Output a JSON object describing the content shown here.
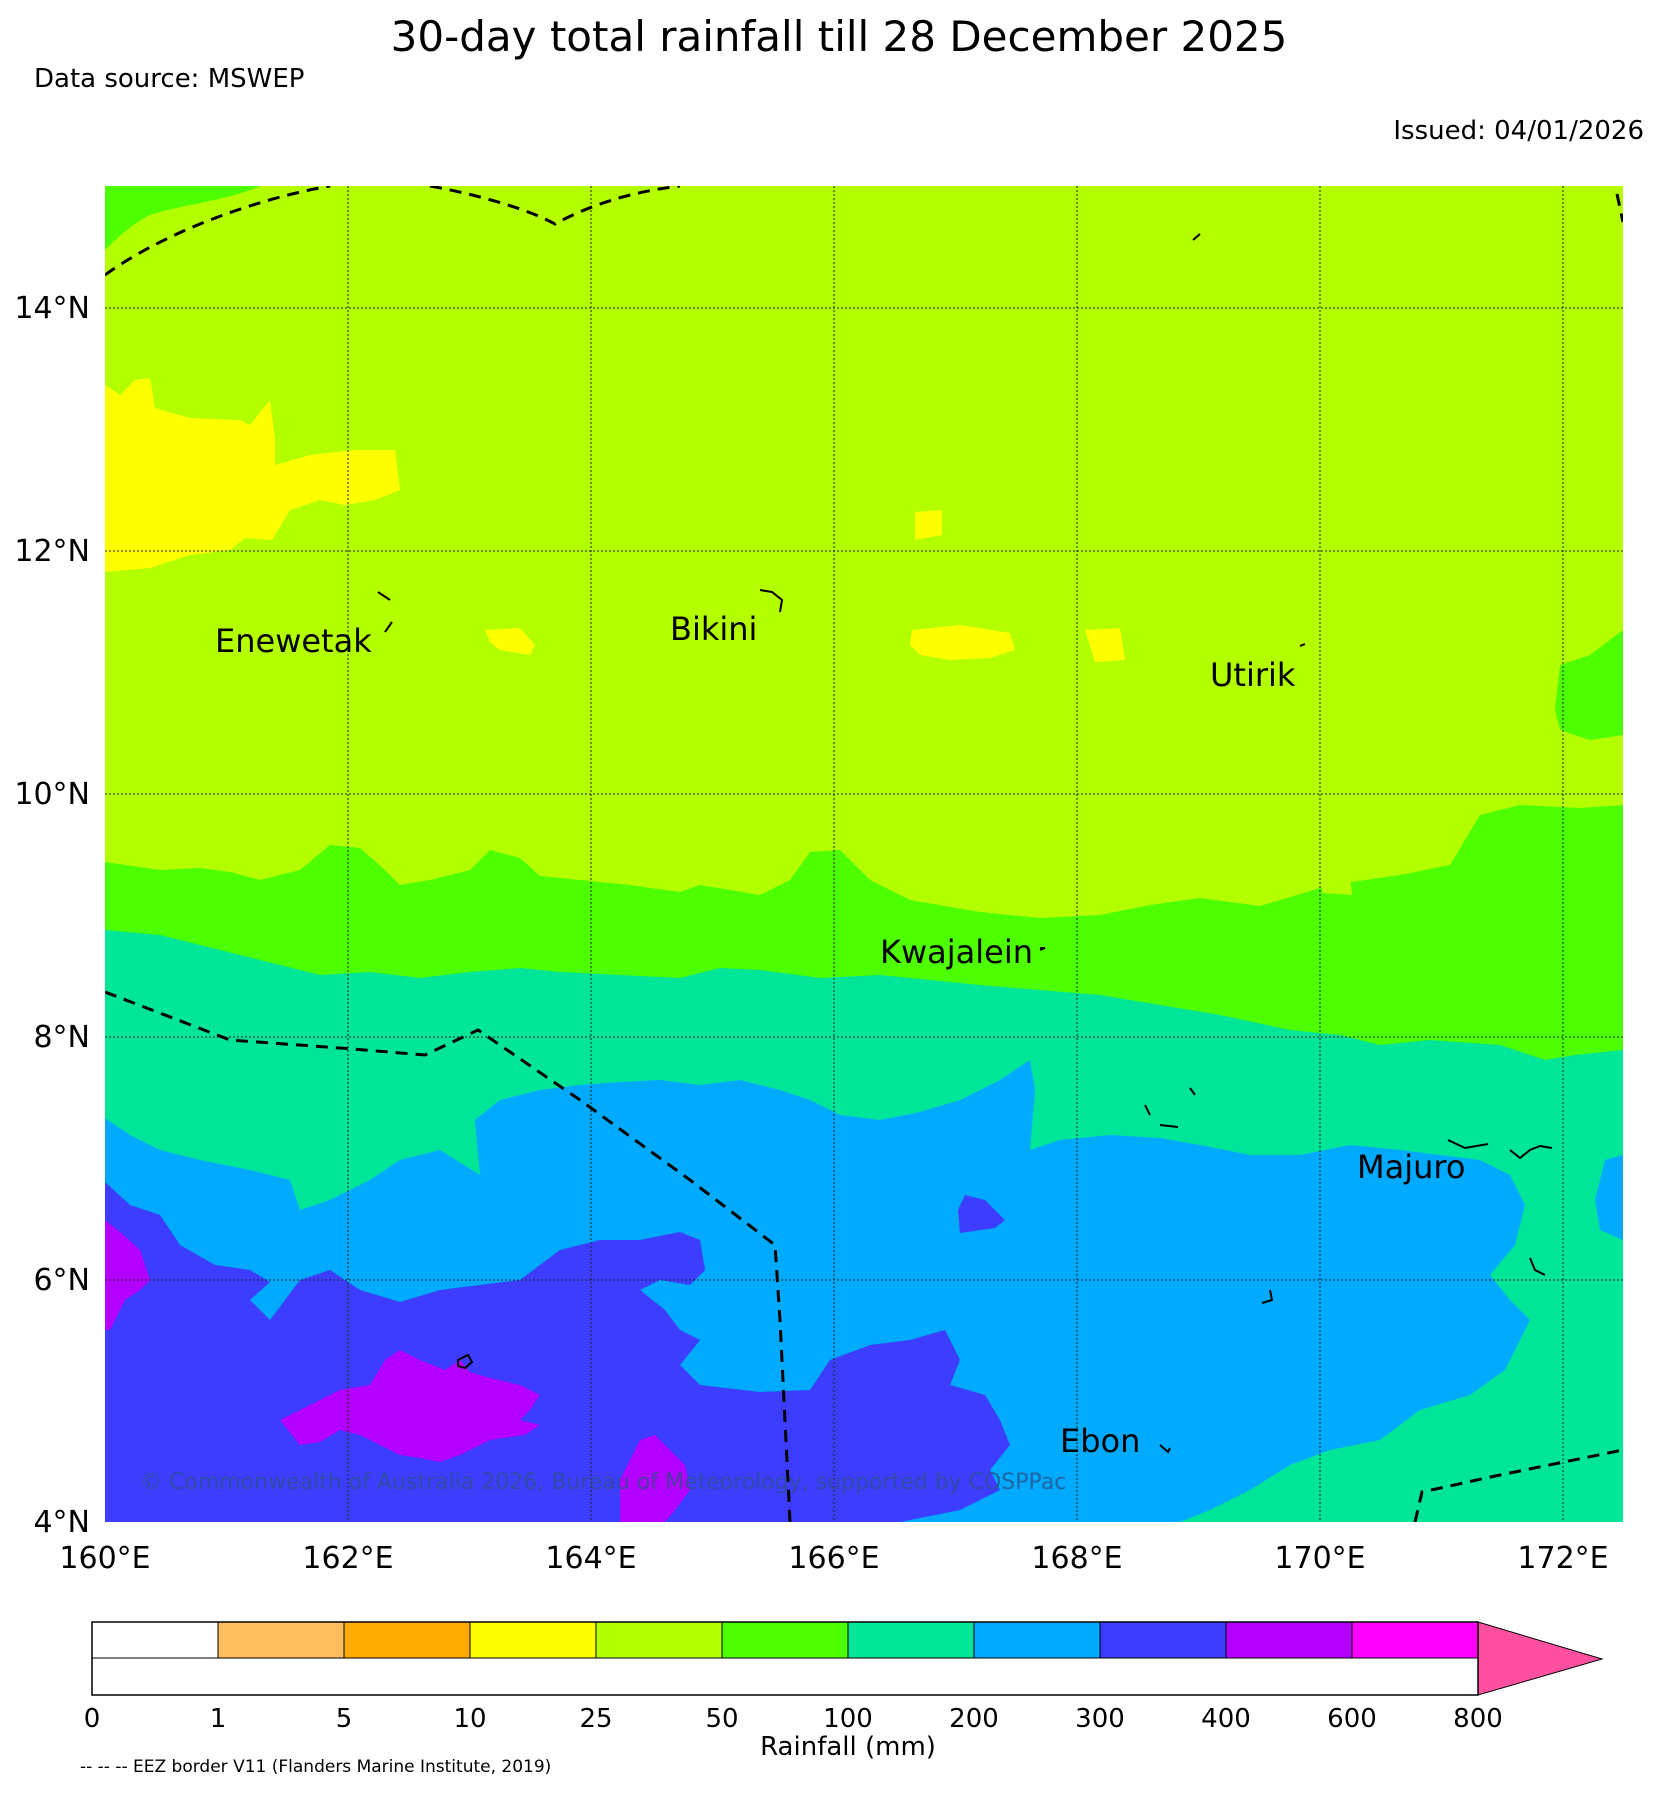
{
  "title": "30-day total rainfall till 28 December 2025",
  "data_source": "Data source: MSWEP",
  "issued": "Issued: 04/01/2026",
  "map": {
    "lat_labels": [
      "14°N",
      "12°N",
      "10°N",
      "8°N",
      "6°N",
      "4°N"
    ],
    "lon_labels": [
      "160°E",
      "162°E",
      "164°E",
      "166°E",
      "168°E",
      "170°E",
      "172°E"
    ],
    "places": [
      {
        "name": "Enewetak"
      },
      {
        "name": "Bikini"
      },
      {
        "name": "Utirik"
      },
      {
        "name": "Kwajalein"
      },
      {
        "name": "Majuro"
      },
      {
        "name": "Ebon"
      }
    ],
    "copyright": "© Commonwealth of Australia 2026, Bureau of Meteorology, supported by COSPPac",
    "colors": {
      "c25_50": "#b3ff00",
      "c50_100": "#4dff00",
      "c100_200": "#00e699",
      "c200_300": "#00aaff",
      "c300_400": "#3d3dff",
      "c400_600": "#b300ff",
      "c10_25": "#ffff00"
    }
  },
  "colorbar": {
    "title": "Rainfall (mm)",
    "ticks": [
      "0",
      "1",
      "5",
      "10",
      "25",
      "50",
      "100",
      "200",
      "300",
      "400",
      "600",
      "800"
    ],
    "colors": [
      "#ffffff",
      "#ffbf5e",
      "#ffaa00",
      "#ffff00",
      "#b3ff00",
      "#4dff00",
      "#00e699",
      "#00aaff",
      "#3d3dff",
      "#b300ff",
      "#ff00ff",
      "#ff4fa0"
    ]
  },
  "eez_note": "-- -- -- EEZ border V11 (Flanders Marine Institute, 2019)"
}
